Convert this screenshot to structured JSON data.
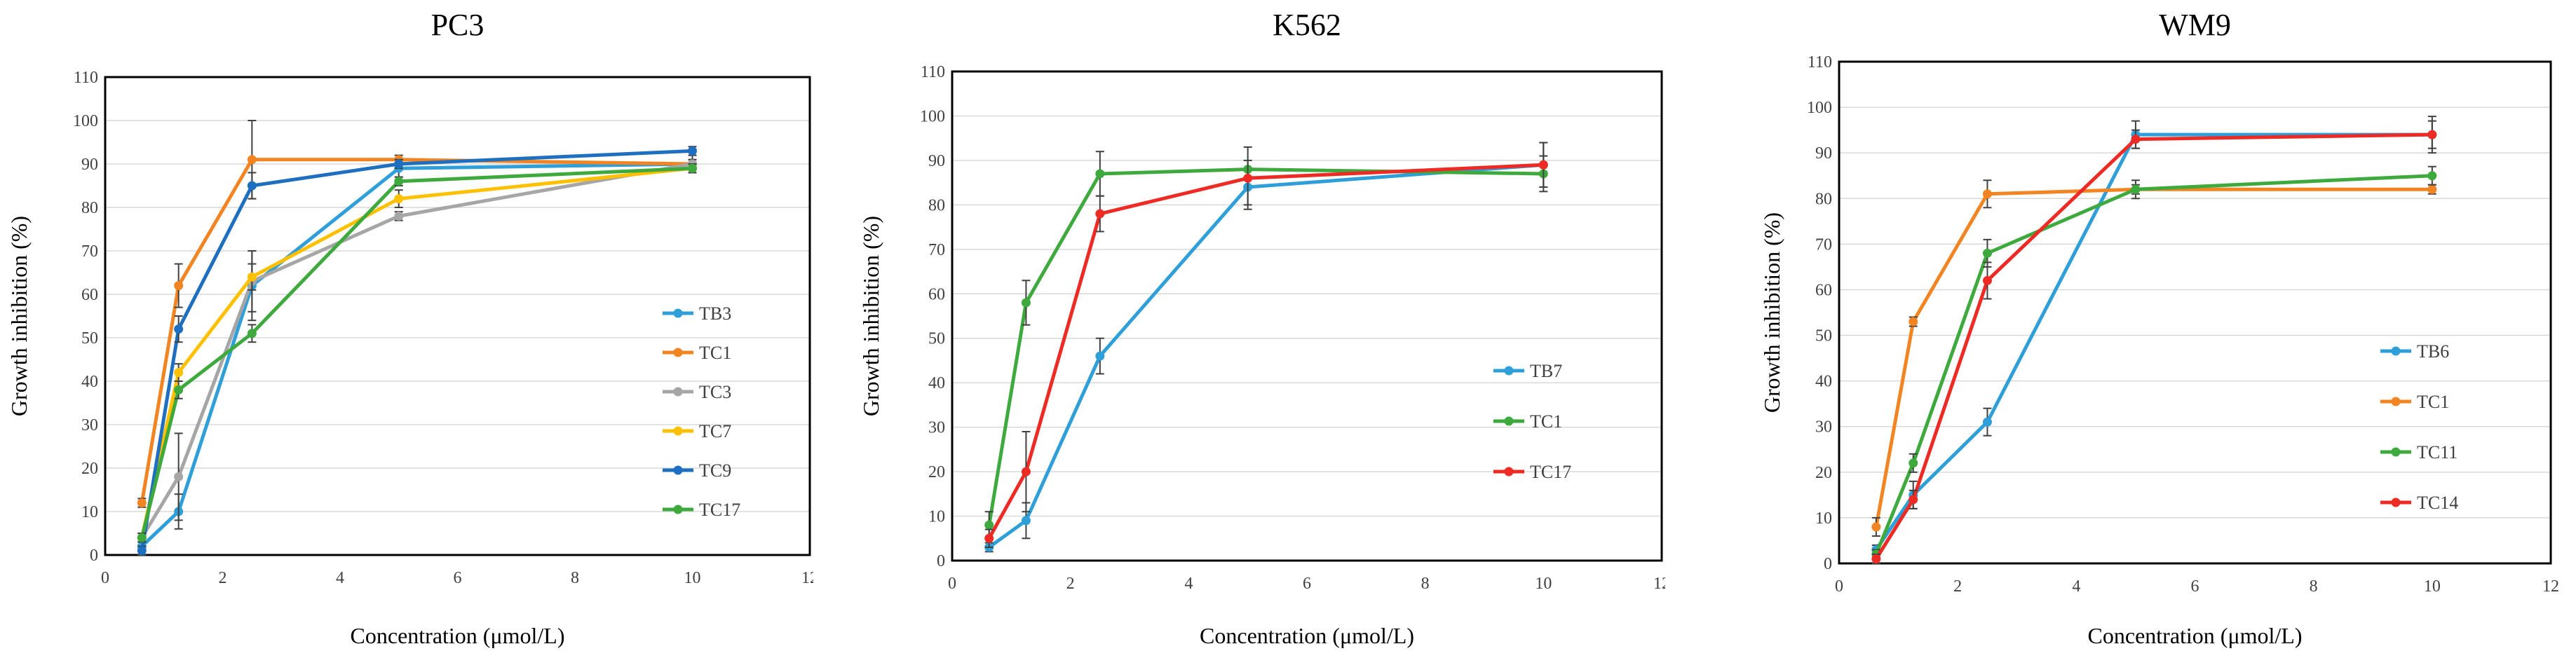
{
  "chart_data": [
    {
      "type": "line",
      "title": "PC3",
      "xlabel": "Concentration (μmol/L)",
      "ylabel": "Growth inhibition (%)",
      "xlim": [
        0,
        12
      ],
      "ylim": [
        0,
        110
      ],
      "xticks": [
        0,
        2,
        4,
        6,
        8,
        10,
        12
      ],
      "yticks": [
        0,
        10,
        20,
        30,
        40,
        50,
        60,
        70,
        80,
        90,
        100,
        110
      ],
      "x": [
        0.625,
        1.25,
        2.5,
        5,
        10
      ],
      "grid": true,
      "legend_position": "lower-right",
      "series": [
        {
          "name": "TB3",
          "color": "#2e9fd8",
          "values": [
            2,
            10,
            62,
            89,
            90
          ],
          "errors": [
            1,
            4,
            8,
            2,
            2
          ]
        },
        {
          "name": "TC1",
          "color": "#f28422",
          "values": [
            12,
            62,
            91,
            91,
            90
          ],
          "errors": [
            1,
            5,
            9,
            1,
            1
          ]
        },
        {
          "name": "TC3",
          "color": "#a6a6a6",
          "values": [
            4,
            18,
            63,
            78,
            90
          ],
          "errors": [
            1,
            10,
            7,
            1,
            1
          ]
        },
        {
          "name": "TC7",
          "color": "#ffc000",
          "values": [
            4,
            42,
            64,
            82,
            89
          ],
          "errors": [
            1,
            2,
            3,
            2,
            1
          ]
        },
        {
          "name": "TC9",
          "color": "#1f6fc0",
          "values": [
            1,
            52,
            85,
            90,
            93
          ],
          "errors": [
            1,
            3,
            3,
            1,
            1
          ]
        },
        {
          "name": "TC17",
          "color": "#3eaa3e",
          "values": [
            4,
            38,
            51,
            86,
            89
          ],
          "errors": [
            1,
            2,
            2,
            1,
            1
          ]
        }
      ]
    },
    {
      "type": "line",
      "title": "K562",
      "xlabel": "Concentration (μmol/L)",
      "ylabel": "Growth inhibition (%)",
      "xlim": [
        0,
        12
      ],
      "ylim": [
        0,
        110
      ],
      "xticks": [
        0,
        2,
        4,
        6,
        8,
        10,
        12
      ],
      "yticks": [
        0,
        10,
        20,
        30,
        40,
        50,
        60,
        70,
        80,
        90,
        100,
        110
      ],
      "x": [
        0.625,
        1.25,
        2.5,
        5,
        10
      ],
      "grid": true,
      "legend_position": "lower-right",
      "series": [
        {
          "name": "TB7",
          "color": "#2e9fd8",
          "values": [
            3,
            9,
            46,
            84,
            89
          ],
          "errors": [
            1,
            4,
            4,
            4,
            5
          ]
        },
        {
          "name": "TC1",
          "color": "#3eaa3e",
          "values": [
            8,
            58,
            87,
            88,
            87
          ],
          "errors": [
            3,
            5,
            5,
            2,
            4
          ]
        },
        {
          "name": "TC17",
          "color": "#ee2a24",
          "values": [
            5,
            20,
            78,
            86,
            89
          ],
          "errors": [
            2,
            9,
            4,
            7,
            5
          ]
        }
      ]
    },
    {
      "type": "line",
      "title": "WM9",
      "xlabel": "Concentration (μmol/L)",
      "ylabel": "Growth inhibition (%)",
      "xlim": [
        0,
        12
      ],
      "ylim": [
        0,
        110
      ],
      "xticks": [
        0,
        2,
        4,
        6,
        8,
        10,
        12
      ],
      "yticks": [
        0,
        10,
        20,
        30,
        40,
        50,
        60,
        70,
        80,
        90,
        100,
        110
      ],
      "x": [
        0.625,
        1.25,
        2.5,
        5,
        10
      ],
      "grid": true,
      "legend_position": "lower-right",
      "series": [
        {
          "name": "TB6",
          "color": "#2e9fd8",
          "values": [
            3,
            15,
            31,
            94,
            94
          ],
          "errors": [
            1,
            3,
            3,
            3,
            3
          ]
        },
        {
          "name": "TC1",
          "color": "#f28422",
          "values": [
            8,
            53,
            81,
            82,
            82
          ],
          "errors": [
            2,
            1,
            3,
            1,
            1
          ]
        },
        {
          "name": "TC11",
          "color": "#3eaa3e",
          "values": [
            2,
            22,
            68,
            82,
            85
          ],
          "errors": [
            1,
            2,
            3,
            2,
            2
          ]
        },
        {
          "name": "TC14",
          "color": "#ee2a24",
          "values": [
            1,
            14,
            62,
            93,
            94
          ],
          "errors": [
            1,
            2,
            4,
            2,
            4
          ]
        }
      ]
    }
  ]
}
